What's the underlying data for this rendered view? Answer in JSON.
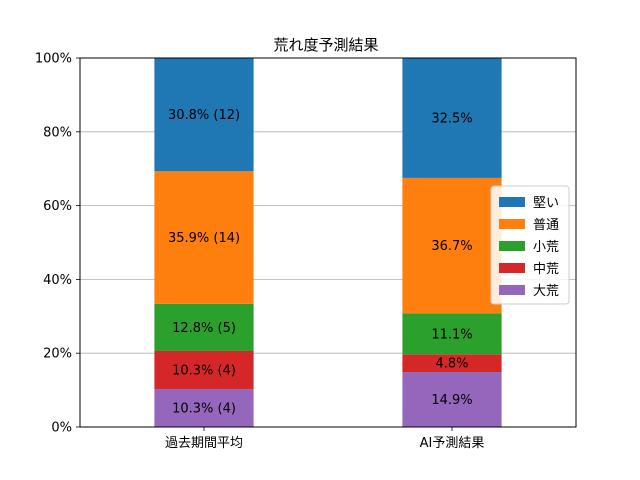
{
  "chart_data": {
    "type": "bar",
    "stacked": true,
    "title": "荒れ度予測結果",
    "xlabel": "",
    "ylabel": "",
    "ylim": [
      0,
      100
    ],
    "y_ticks": [
      "0%",
      "20%",
      "40%",
      "60%",
      "80%",
      "100%"
    ],
    "grid": "horizontal",
    "legend_position": "right",
    "categories": [
      "過去期間平均",
      "AI予測結果"
    ],
    "series": [
      {
        "name": "大荒",
        "color": "#9467bd",
        "values": [
          10.3,
          14.9
        ],
        "labels": [
          "10.3% (4)",
          "14.9%"
        ]
      },
      {
        "name": "中荒",
        "color": "#d62728",
        "values": [
          10.3,
          4.8
        ],
        "labels": [
          "10.3% (4)",
          "4.8%"
        ]
      },
      {
        "name": "小荒",
        "color": "#2ca02c",
        "values": [
          12.8,
          11.1
        ],
        "labels": [
          "12.8% (5)",
          "11.1%"
        ]
      },
      {
        "name": "普通",
        "color": "#ff7f0e",
        "values": [
          35.9,
          36.7
        ],
        "labels": [
          "35.9% (14)",
          "36.7%"
        ]
      },
      {
        "name": "堅い",
        "color": "#1f77b4",
        "values": [
          30.8,
          32.5
        ],
        "labels": [
          "30.8% (12)",
          "32.5%"
        ]
      }
    ],
    "legend_order": [
      "堅い",
      "普通",
      "小荒",
      "中荒",
      "大荒"
    ]
  }
}
